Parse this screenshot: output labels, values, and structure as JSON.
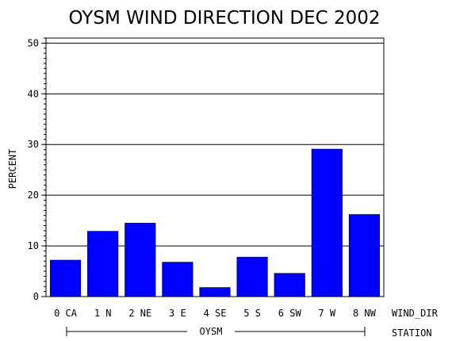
{
  "chart_data": {
    "type": "bar",
    "title": "OYSM WIND DIRECTION DEC 2002",
    "ylabel": "PERCENT",
    "xlabel": "WIND_DIR",
    "group_axis_label": "STATION",
    "group_name": "OYSM",
    "ylim": [
      0,
      51
    ],
    "yticks": [
      "0",
      "10",
      "20",
      "30",
      "40",
      "50"
    ],
    "grid": true,
    "categories": [
      "0 CA",
      "1 N",
      "2 NE",
      "3 E",
      "4 SE",
      "5 S",
      "6 SW",
      "7 W",
      "8 NW"
    ],
    "values": [
      7.2,
      12.9,
      14.5,
      6.8,
      1.8,
      7.8,
      4.6,
      29.1,
      16.2
    ],
    "bar_color": "#0000ff"
  }
}
